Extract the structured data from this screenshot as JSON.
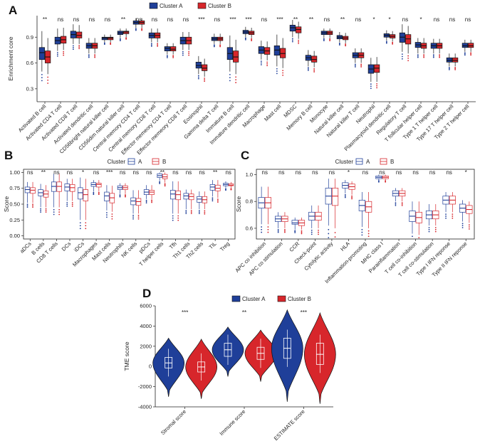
{
  "colors": {
    "cluster_a": "#1f3f99",
    "cluster_b": "#d7262b",
    "cluster_a_light": "#4a79c7",
    "cluster_b_light": "#f06060",
    "axis": "#222222"
  },
  "chart_data": [
    {
      "panel": "A",
      "type": "boxplot",
      "style": "filled",
      "ylabel": "Enrichment core",
      "ylim": [
        0.15,
        1.15
      ],
      "yticks": [
        0.3,
        0.6,
        0.9
      ],
      "legend": {
        "title": "",
        "entries": [
          "Cluster A",
          "Cluster B"
        ],
        "position": "top"
      },
      "categories": [
        "Activated B cell",
        "Activated CD4 T cell",
        "Activated CD8 T cell",
        "Activated dendritic cell",
        "CD56bright natural killer cell",
        "CD56dim natural killer cell",
        "Central memory CD4 T cell",
        "Central memory CD8 T cell",
        "Effector memeory CD4 T cell",
        "Effector memeory CD8 T cell",
        "Eosinophil",
        "Gamma delta T cell",
        "Immature B cell",
        "Immature dendritic cell",
        "Macrophage",
        "Mast cell",
        "MDSC",
        "Memory B cell",
        "Monocyte",
        "Natural killer cell",
        "Natural killer T cell",
        "Neutrophil",
        "Plasmacytoid dendritic cell",
        "Regulatory T cell",
        "T follicular helper cell",
        "Type 1 T helper cell",
        "Type 17 T helper cell",
        "Type 2 T helper cell"
      ],
      "significance": [
        "**",
        "ns",
        "ns",
        "ns",
        "ns",
        "**",
        "ns",
        "ns",
        "ns",
        "ns",
        "***",
        "ns",
        "***",
        "***",
        "ns",
        "***",
        "**",
        "**",
        "ns",
        "**",
        "ns",
        "*",
        "*",
        "ns",
        "*",
        "ns",
        "ns",
        "ns"
      ],
      "series": [
        {
          "name": "Cluster A",
          "medians": [
            0.72,
            0.86,
            0.93,
            0.8,
            0.89,
            0.95,
            1.07,
            0.92,
            0.77,
            0.86,
            0.57,
            0.88,
            0.71,
            0.96,
            0.75,
            0.75,
            1.01,
            0.66,
            0.95,
            0.9,
            0.69,
            0.53,
            0.92,
            0.9,
            0.81,
            0.8,
            0.63,
            0.8
          ],
          "q1": [
            0.64,
            0.82,
            0.89,
            0.77,
            0.87,
            0.93,
            1.05,
            0.89,
            0.74,
            0.82,
            0.54,
            0.86,
            0.64,
            0.94,
            0.71,
            0.69,
            0.97,
            0.63,
            0.93,
            0.88,
            0.66,
            0.48,
            0.9,
            0.84,
            0.78,
            0.77,
            0.61,
            0.78
          ],
          "q3": [
            0.78,
            0.9,
            0.97,
            0.83,
            0.9,
            0.97,
            1.09,
            0.95,
            0.79,
            0.9,
            0.61,
            0.9,
            0.78,
            0.98,
            0.79,
            0.8,
            1.04,
            0.69,
            0.97,
            0.92,
            0.72,
            0.58,
            0.94,
            0.95,
            0.84,
            0.83,
            0.66,
            0.83
          ],
          "wlow": [
            0.5,
            0.74,
            0.82,
            0.71,
            0.84,
            0.89,
            1.01,
            0.84,
            0.7,
            0.75,
            0.47,
            0.82,
            0.5,
            0.9,
            0.64,
            0.56,
            0.9,
            0.56,
            0.89,
            0.84,
            0.6,
            0.38,
            0.86,
            0.73,
            0.71,
            0.71,
            0.56,
            0.73
          ],
          "whigh": [
            0.97,
            1.0,
            1.05,
            0.89,
            0.93,
            1.0,
            1.12,
            1.0,
            0.83,
            0.96,
            0.68,
            0.94,
            0.92,
            1.02,
            0.86,
            0.93,
            1.1,
            0.75,
            1.0,
            0.96,
            0.77,
            0.66,
            0.98,
            1.05,
            0.89,
            0.88,
            0.71,
            0.87
          ]
        },
        {
          "name": "Cluster B",
          "medians": [
            0.67,
            0.87,
            0.92,
            0.8,
            0.89,
            0.96,
            1.07,
            0.92,
            0.76,
            0.86,
            0.54,
            0.88,
            0.67,
            0.95,
            0.74,
            0.71,
            0.99,
            0.64,
            0.95,
            0.89,
            0.69,
            0.54,
            0.91,
            0.88,
            0.8,
            0.8,
            0.63,
            0.8
          ],
          "q1": [
            0.6,
            0.83,
            0.89,
            0.77,
            0.87,
            0.94,
            1.05,
            0.89,
            0.74,
            0.82,
            0.51,
            0.86,
            0.61,
            0.93,
            0.7,
            0.66,
            0.95,
            0.61,
            0.93,
            0.87,
            0.66,
            0.49,
            0.89,
            0.82,
            0.77,
            0.77,
            0.61,
            0.78
          ],
          "q3": [
            0.74,
            0.91,
            0.96,
            0.83,
            0.9,
            0.97,
            1.09,
            0.95,
            0.79,
            0.9,
            0.58,
            0.9,
            0.74,
            0.97,
            0.78,
            0.77,
            1.02,
            0.68,
            0.97,
            0.91,
            0.72,
            0.58,
            0.93,
            0.93,
            0.83,
            0.83,
            0.66,
            0.83
          ],
          "wlow": [
            0.47,
            0.75,
            0.82,
            0.71,
            0.84,
            0.9,
            1.01,
            0.84,
            0.7,
            0.75,
            0.44,
            0.82,
            0.47,
            0.89,
            0.63,
            0.54,
            0.88,
            0.55,
            0.89,
            0.83,
            0.6,
            0.38,
            0.85,
            0.71,
            0.71,
            0.71,
            0.56,
            0.73
          ],
          "whigh": [
            0.89,
            1.01,
            1.04,
            0.89,
            0.93,
            1.0,
            1.12,
            1.0,
            0.83,
            0.96,
            0.65,
            0.94,
            0.87,
            1.01,
            0.85,
            0.89,
            1.08,
            0.74,
            1.0,
            0.95,
            0.77,
            0.67,
            0.97,
            1.03,
            0.89,
            0.88,
            0.71,
            0.87
          ]
        }
      ]
    },
    {
      "panel": "B",
      "type": "boxplot",
      "style": "outline",
      "ylabel": "Score",
      "ylim": [
        -0.05,
        1.05
      ],
      "yticks": [
        "0.00",
        "0.25",
        "0.50",
        "0.75",
        "1.00"
      ],
      "legend": {
        "title": "Cluster",
        "entries": [
          "A",
          "B"
        ],
        "position": "top"
      },
      "categories": [
        "aDCs",
        "B cells",
        "CD8 T cells",
        "DCs",
        "iDCs",
        "Macrophages",
        "Mast cells",
        "Neutrophils",
        "NK cells",
        "pDCs",
        "T helper cells",
        "Tfh",
        "Th1 cells",
        "Th2 cells",
        "TIL",
        "Treg"
      ],
      "significance": [
        "ns",
        "**",
        "ns",
        "ns",
        "*",
        "ns",
        "***",
        "ns",
        "ns",
        "ns",
        "**",
        "ns",
        "ns",
        "ns",
        "**",
        "ns"
      ],
      "series": [
        {
          "name": "A",
          "medians": [
            0.73,
            0.68,
            0.78,
            0.77,
            0.68,
            0.81,
            0.63,
            0.76,
            0.55,
            0.69,
            0.95,
            0.66,
            0.63,
            0.58,
            0.77,
            0.81
          ],
          "q1": [
            0.68,
            0.63,
            0.7,
            0.71,
            0.58,
            0.78,
            0.55,
            0.73,
            0.49,
            0.65,
            0.92,
            0.58,
            0.58,
            0.53,
            0.72,
            0.79
          ],
          "q3": [
            0.77,
            0.73,
            0.85,
            0.82,
            0.76,
            0.84,
            0.69,
            0.79,
            0.6,
            0.73,
            0.98,
            0.72,
            0.67,
            0.62,
            0.81,
            0.83
          ],
          "wlow": [
            0.52,
            0.45,
            0.45,
            0.55,
            0.25,
            0.7,
            0.4,
            0.66,
            0.35,
            0.58,
            0.87,
            0.35,
            0.42,
            0.42,
            0.62,
            0.75
          ],
          "whigh": [
            0.85,
            0.82,
            0.98,
            0.9,
            0.92,
            0.88,
            0.8,
            0.83,
            0.72,
            0.8,
            1.0,
            0.86,
            0.73,
            0.7,
            0.88,
            0.86
          ]
        },
        {
          "name": "B",
          "medians": [
            0.72,
            0.66,
            0.78,
            0.76,
            0.65,
            0.81,
            0.6,
            0.76,
            0.54,
            0.69,
            0.93,
            0.65,
            0.62,
            0.57,
            0.75,
            0.8
          ],
          "q1": [
            0.67,
            0.61,
            0.7,
            0.7,
            0.55,
            0.77,
            0.52,
            0.73,
            0.48,
            0.65,
            0.9,
            0.57,
            0.57,
            0.52,
            0.71,
            0.79
          ],
          "q3": [
            0.76,
            0.71,
            0.85,
            0.81,
            0.73,
            0.83,
            0.67,
            0.79,
            0.59,
            0.72,
            0.97,
            0.71,
            0.66,
            0.62,
            0.8,
            0.82
          ],
          "wlow": [
            0.52,
            0.45,
            0.45,
            0.55,
            0.25,
            0.7,
            0.38,
            0.66,
            0.35,
            0.58,
            0.84,
            0.35,
            0.42,
            0.42,
            0.6,
            0.75
          ],
          "whigh": [
            0.85,
            0.8,
            0.98,
            0.9,
            0.9,
            0.88,
            0.79,
            0.83,
            0.72,
            0.8,
            1.0,
            0.86,
            0.73,
            0.7,
            0.88,
            0.85
          ]
        }
      ]
    },
    {
      "panel": "C",
      "type": "boxplot",
      "style": "outline",
      "ylabel": "Score",
      "ylim": [
        0.52,
        1.04
      ],
      "yticks": [
        "0.6",
        "0.8",
        "1.0"
      ],
      "legend": {
        "title": "Cluster",
        "entries": [
          "A",
          "B"
        ],
        "position": "top"
      },
      "categories": [
        "APC co inhibition",
        "APC co stimulation",
        "CCR",
        "Check-point",
        "Cytolytic activity",
        "HLA",
        "Inflammation-promoting",
        "MHC class I",
        "Parainflammation",
        "T cell co-inhibition",
        "T cell co-stimulation",
        "Type I IFN reponse",
        "Type II IFN reponse"
      ],
      "significance": [
        "ns",
        "ns",
        "ns",
        "ns",
        "ns",
        "*",
        "ns",
        "ns",
        "ns",
        "ns",
        "ns",
        "ns",
        "*"
      ],
      "series": [
        {
          "name": "A",
          "medians": [
            0.79,
            0.67,
            0.64,
            0.69,
            0.84,
            0.92,
            0.77,
            0.98,
            0.86,
            0.69,
            0.7,
            0.81,
            0.75
          ],
          "q1": [
            0.75,
            0.65,
            0.63,
            0.66,
            0.78,
            0.9,
            0.73,
            0.97,
            0.84,
            0.65,
            0.67,
            0.78,
            0.72
          ],
          "q3": [
            0.83,
            0.69,
            0.66,
            0.72,
            0.9,
            0.94,
            0.81,
            0.99,
            0.88,
            0.73,
            0.73,
            0.84,
            0.78
          ],
          "wlow": [
            0.63,
            0.6,
            0.59,
            0.6,
            0.62,
            0.86,
            0.61,
            0.96,
            0.8,
            0.56,
            0.62,
            0.72,
            0.65
          ],
          "whigh": [
            0.91,
            0.72,
            0.68,
            0.77,
            0.97,
            0.96,
            0.87,
            1.0,
            0.9,
            0.8,
            0.78,
            0.87,
            0.81
          ]
        },
        {
          "name": "B",
          "medians": [
            0.79,
            0.67,
            0.64,
            0.69,
            0.84,
            0.91,
            0.76,
            0.98,
            0.86,
            0.68,
            0.7,
            0.81,
            0.74
          ],
          "q1": [
            0.75,
            0.65,
            0.62,
            0.66,
            0.77,
            0.89,
            0.72,
            0.97,
            0.84,
            0.64,
            0.67,
            0.78,
            0.71
          ],
          "q3": [
            0.83,
            0.69,
            0.66,
            0.72,
            0.9,
            0.93,
            0.8,
            0.99,
            0.88,
            0.72,
            0.73,
            0.84,
            0.77
          ],
          "wlow": [
            0.63,
            0.6,
            0.59,
            0.6,
            0.6,
            0.85,
            0.6,
            0.96,
            0.8,
            0.55,
            0.62,
            0.72,
            0.64
          ],
          "whigh": [
            0.91,
            0.72,
            0.68,
            0.77,
            0.97,
            0.95,
            0.87,
            1.0,
            0.9,
            0.8,
            0.78,
            0.87,
            0.8
          ]
        }
      ]
    },
    {
      "panel": "D",
      "type": "violin",
      "ylabel": "TME score",
      "ylim": [
        -4000,
        6000
      ],
      "yticks": [
        "-4000",
        "-2000",
        "0",
        "2000",
        "4000",
        "6000"
      ],
      "legend": {
        "title": "",
        "entries": [
          "Cluster A",
          "Cluster B"
        ],
        "position": "top"
      },
      "categories": [
        "Stromal score",
        "Immune score",
        "ESTIMATE score"
      ],
      "significance": [
        "***",
        "**",
        "***"
      ],
      "series": [
        {
          "name": "Cluster A",
          "medians": [
            350,
            1650,
            1800
          ],
          "q1": [
            -150,
            1000,
            800
          ],
          "q3": [
            900,
            2300,
            2800
          ],
          "min": [
            -3000,
            -1000,
            -3500
          ],
          "max": [
            2800,
            3900,
            5600
          ]
        },
        {
          "name": "Cluster B",
          "medians": [
            -50,
            1300,
            1200
          ],
          "q1": [
            -550,
            700,
            200
          ],
          "q3": [
            450,
            1900,
            2300
          ],
          "min": [
            -3200,
            -1500,
            -3700
          ],
          "max": [
            2700,
            3600,
            5300
          ]
        }
      ]
    }
  ]
}
